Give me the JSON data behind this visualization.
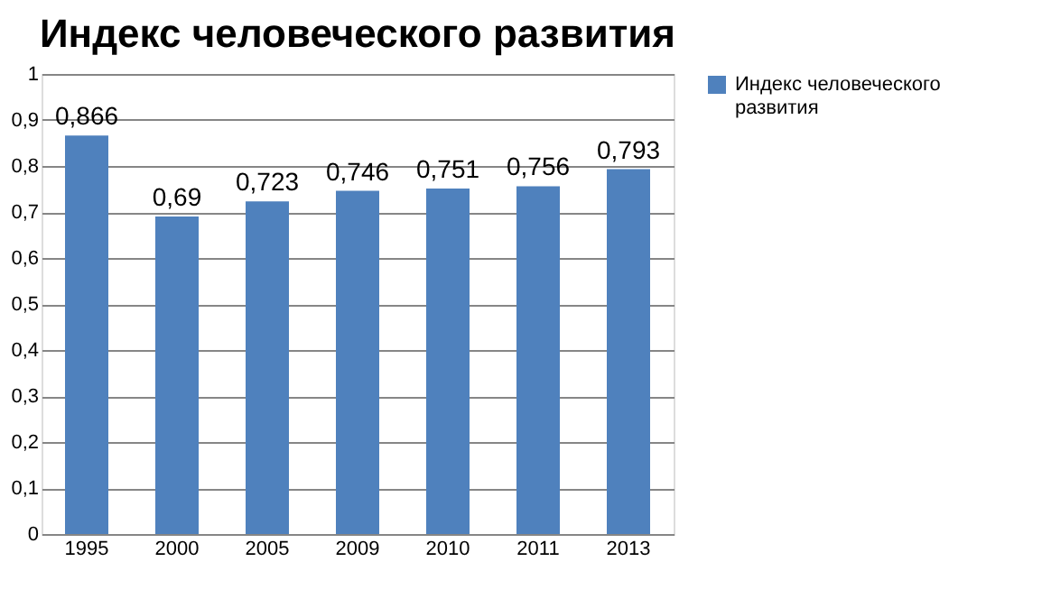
{
  "chart_data": {
    "type": "bar",
    "title": "Индекс человеческого развития",
    "categories": [
      "1995",
      "2000",
      "2005",
      "2009",
      "2010",
      "2011",
      "2013"
    ],
    "series": [
      {
        "name": "Индекс человеческого развития",
        "color": "#4f81bd",
        "values": [
          0.866,
          0.69,
          0.723,
          0.746,
          0.751,
          0.756,
          0.793
        ],
        "value_labels": [
          "0,866",
          "0,69",
          "0,723",
          "0,746",
          "0,751",
          "0,756",
          "0,793"
        ]
      }
    ],
    "ylim": [
      0,
      1
    ],
    "yticks": [
      0,
      {
        "value": 0.1,
        "label": "0,1"
      },
      {
        "value": 0.2,
        "label": "0,2"
      },
      {
        "value": 0.3,
        "label": "0,3"
      },
      {
        "value": 0.4,
        "label": "0,4"
      },
      {
        "value": 0.5,
        "label": "0,5"
      },
      {
        "value": 0.6,
        "label": "0,6"
      },
      {
        "value": 0.7,
        "label": "0,7"
      },
      {
        "value": 0.8,
        "label": "0,8"
      },
      {
        "value": 0.9,
        "label": "0,9"
      },
      1
    ],
    "grid": "y",
    "legend": "right"
  }
}
